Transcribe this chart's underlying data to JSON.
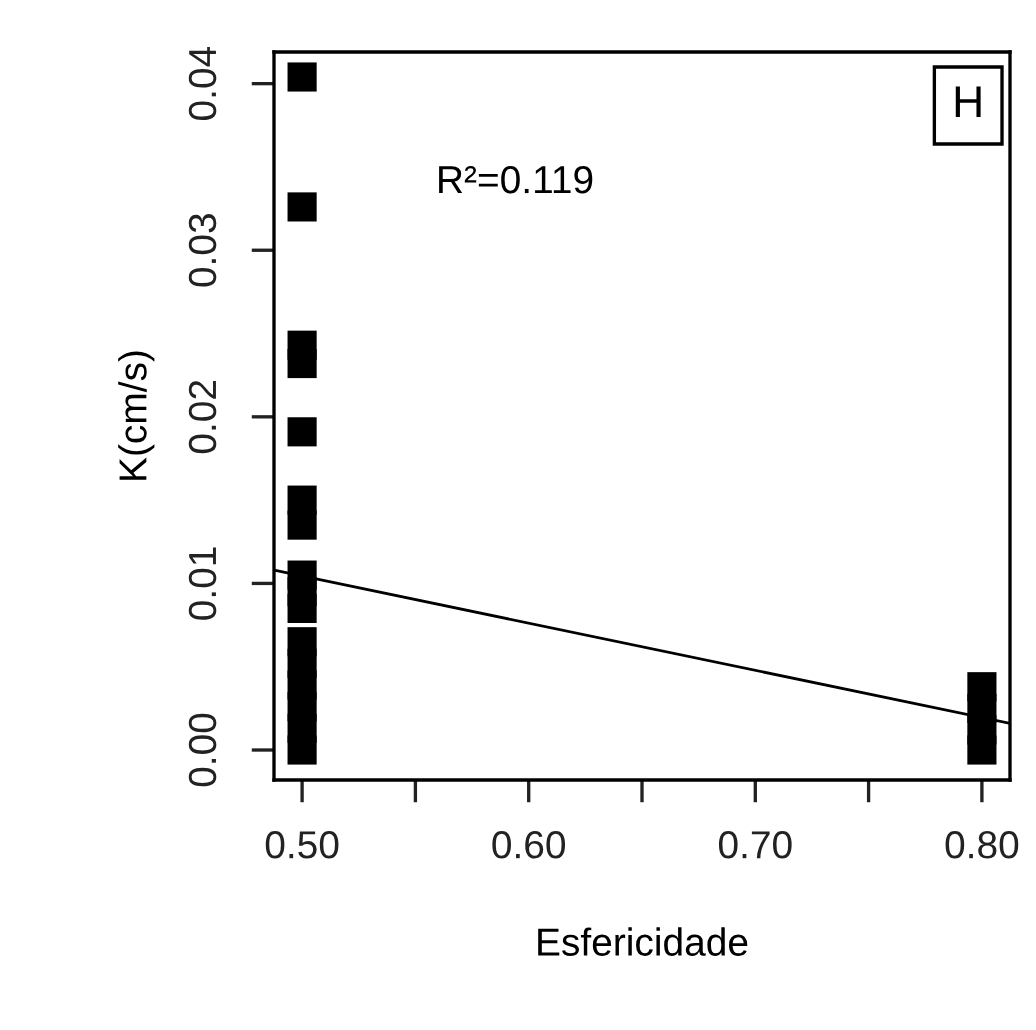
{
  "chart_data": {
    "type": "scatter",
    "xlabel": "Esfericidade",
    "ylabel": "K(cm/s)",
    "annotations": [
      "R²=0.119",
      "H"
    ],
    "xlim": [
      0.4876,
      0.8124
    ],
    "ylim": [
      -0.0018,
      0.0419
    ],
    "xticks": [
      {
        "value": 0.5,
        "label": "0.50"
      },
      {
        "value": 0.55,
        "label": null
      },
      {
        "value": 0.6,
        "label": "0.60"
      },
      {
        "value": 0.65,
        "label": null
      },
      {
        "value": 0.7,
        "label": "0.70"
      },
      {
        "value": 0.75,
        "label": null
      },
      {
        "value": 0.8,
        "label": "0.80"
      }
    ],
    "yticks": [
      {
        "value": 0,
        "label": "0.00"
      },
      {
        "value": 0.01,
        "label": "0.01"
      },
      {
        "value": 0.02,
        "label": "0.02"
      },
      {
        "value": 0.03,
        "label": "0.03"
      },
      {
        "value": 0.04,
        "label": "0.04"
      }
    ],
    "marker": "square",
    "grid": false,
    "legend": false,
    "series": [
      {
        "color": "#000000",
        "x": [
          0.5,
          0.5,
          0.5,
          0.5,
          0.5,
          0.5,
          0.5,
          0.5,
          0.5,
          0.5,
          0.5,
          0.5,
          0.5,
          0.5,
          0.5,
          0.5,
          0.8,
          0.8,
          0.8,
          0.8
        ],
        "values": [
          0.0404,
          0.0326,
          0.0243,
          0.0232,
          0.0191,
          0.015,
          0.0135,
          0.0105,
          0.0095,
          0.0085,
          0.0065,
          0.0052,
          0.0039,
          0.0026,
          0.0013,
          0.0,
          0.0038,
          0.0025,
          0.0012,
          0.0
        ]
      },
      {
        "type": "line",
        "color": "#000000",
        "marker": "none",
        "x": [
          0.4876,
          0.8124
        ],
        "values": [
          0.0108,
          0.0016
        ]
      }
    ]
  }
}
